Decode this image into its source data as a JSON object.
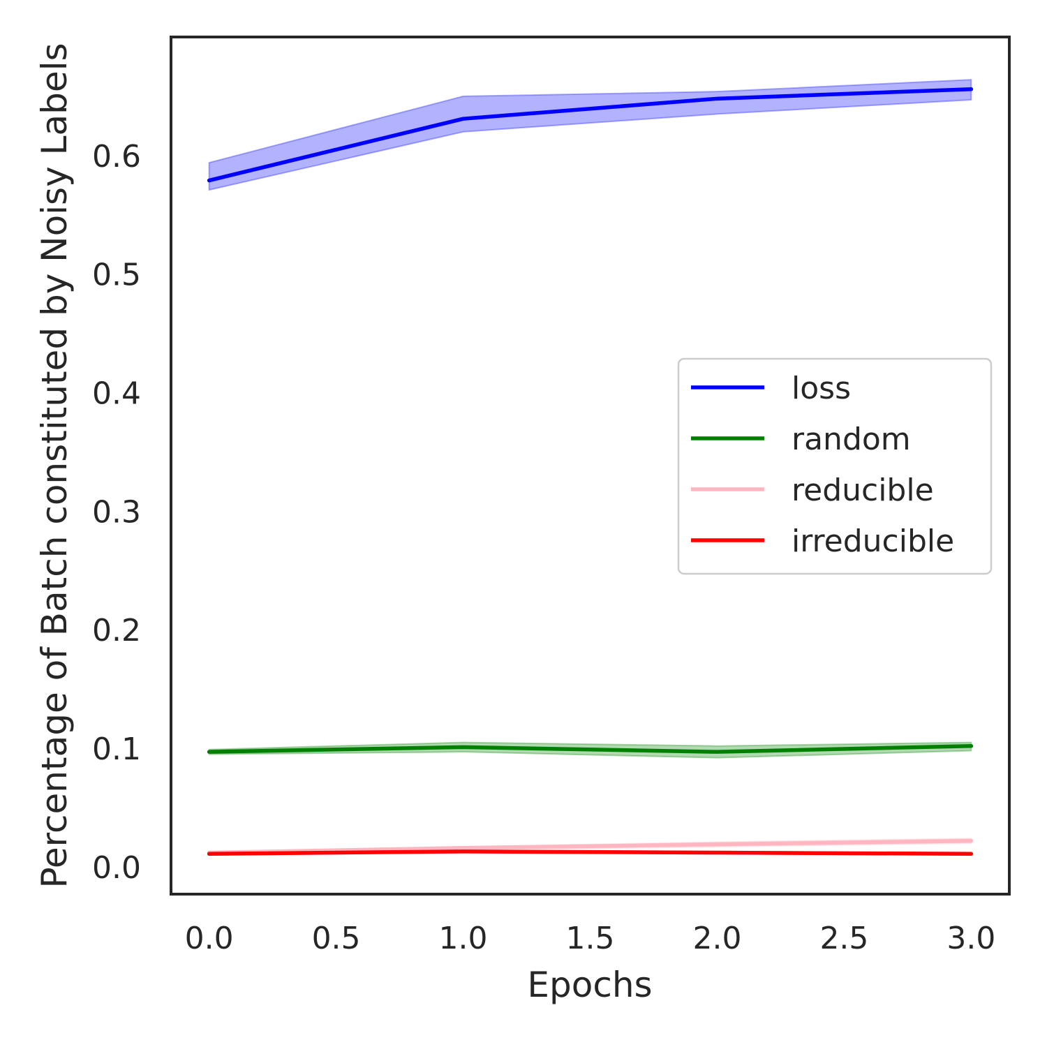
{
  "chart_data": {
    "type": "line",
    "title": "",
    "xlabel": "Epochs",
    "ylabel": "Percentage of Batch constituted by Noisy Labels",
    "xlim": [
      -0.15,
      3.15
    ],
    "ylim": [
      -0.023,
      0.7
    ],
    "xticks": [
      0.0,
      0.5,
      1.0,
      1.5,
      2.0,
      2.5,
      3.0
    ],
    "xtick_labels": [
      "0.0",
      "0.5",
      "1.0",
      "1.5",
      "2.0",
      "2.5",
      "3.0"
    ],
    "yticks": [
      0.0,
      0.1,
      0.2,
      0.3,
      0.4,
      0.5,
      0.6
    ],
    "ytick_labels": [
      "0.0",
      "0.1",
      "0.2",
      "0.3",
      "0.4",
      "0.5",
      "0.6"
    ],
    "grid": false,
    "legend_position": "center-right",
    "x": [
      0,
      1,
      2,
      3
    ],
    "series": [
      {
        "name": "loss",
        "color": "#0000ff",
        "values": [
          0.579,
          0.631,
          0.648,
          0.656
        ],
        "band_low": [
          0.571,
          0.62,
          0.635,
          0.647
        ],
        "band_high": [
          0.594,
          0.65,
          0.654,
          0.664
        ]
      },
      {
        "name": "random",
        "color": "#008000",
        "values": [
          0.097,
          0.101,
          0.097,
          0.102
        ],
        "band_low": [
          0.095,
          0.097,
          0.092,
          0.098
        ],
        "band_high": [
          0.099,
          0.105,
          0.102,
          0.105
        ]
      },
      {
        "name": "reducible",
        "color": "#ffb6c1",
        "values": [
          0.012,
          0.016,
          0.019,
          0.022
        ],
        "band_low": [
          0.011,
          0.014,
          0.017,
          0.02
        ],
        "band_high": [
          0.013,
          0.017,
          0.021,
          0.024
        ]
      },
      {
        "name": "irreducible",
        "color": "#ff0000",
        "values": [
          0.011,
          0.013,
          0.012,
          0.011
        ],
        "band_low": [
          0.01,
          0.012,
          0.011,
          0.01
        ],
        "band_high": [
          0.012,
          0.014,
          0.013,
          0.012
        ]
      }
    ]
  }
}
